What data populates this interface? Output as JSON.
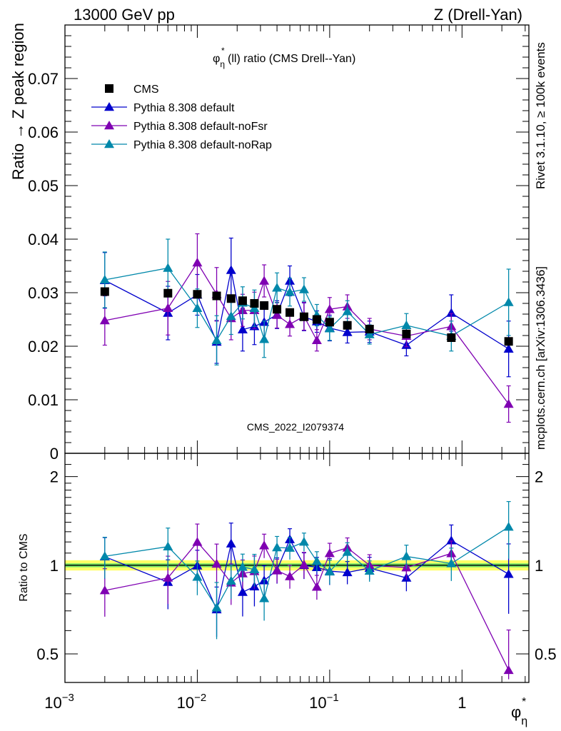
{
  "header": {
    "left": "13000 GeV pp",
    "right": "Z (Drell-Yan)",
    "watermark": "CMS_2022_I2079374"
  },
  "side": {
    "rivet": "Rivet 3.1.10, ≥ 100k events",
    "mcplots": "mcplots.cern.ch [arXiv:1306.3436]"
  },
  "colors": {
    "CMS": "#000000",
    "default": "#0000cc",
    "noFsr": "#7f00b2",
    "noRap": "#0088aa",
    "band_inner": "#00cc66",
    "band_outer": "#ffff66"
  },
  "chart_data": {
    "type": "scatter",
    "title": "φ*η(ll) ratio (CMS Drell--Yan)",
    "title_parts": {
      "sym": "φ",
      "sup": "*",
      "sub": "η",
      "rest": "(ll) ratio (CMS Drell--Yan)"
    },
    "ylabel": "Ratio → Z peak region",
    "ratio_ylabel": "Ratio to CMS",
    "xlabel_parts": {
      "sym": "φ",
      "sup": "*",
      "sub": "η"
    },
    "xscale": "log",
    "xlim": [
      0.001,
      3.2
    ],
    "ylim": [
      0,
      0.08
    ],
    "ratio_ylim": [
      0.4,
      2.4
    ],
    "ratio_scale": "log",
    "legend_position": "top-left",
    "x_tick_labels": [
      {
        "base": "10",
        "exp": "−3"
      },
      {
        "base": "10",
        "exp": "−2"
      },
      {
        "base": "10",
        "exp": "−1"
      },
      {
        "base": "1",
        "exp": ""
      }
    ],
    "y_tick_labels": [
      "0",
      "0.01",
      "0.02",
      "0.03",
      "0.04",
      "0.05",
      "0.06",
      "0.07"
    ],
    "ratio_tick_labels": [
      "0.5",
      "1",
      "2"
    ],
    "x": [
      0.002,
      0.006,
      0.01,
      0.014,
      0.018,
      0.022,
      0.027,
      0.032,
      0.04,
      0.05,
      0.064,
      0.08,
      0.1,
      0.136,
      0.2,
      0.38,
      0.83,
      2.25
    ],
    "series": [
      {
        "name": "CMS",
        "key": "CMS",
        "marker": "square",
        "values": [
          0.0302,
          0.0299,
          0.0297,
          0.0294,
          0.0289,
          0.0285,
          0.028,
          0.0276,
          0.0269,
          0.0263,
          0.0255,
          0.025,
          0.0245,
          0.0239,
          0.0232,
          0.0223,
          0.0216,
          0.0209
        ],
        "errors": [
          0.0004,
          0.0004,
          0.0004,
          0.0004,
          0.0004,
          0.0004,
          0.0004,
          0.0004,
          0.0004,
          0.0004,
          0.0004,
          0.0004,
          0.0004,
          0.0004,
          0.0004,
          0.0004,
          0.0004,
          0.0004
        ]
      },
      {
        "name": "Pythia 8.308 default",
        "key": "default",
        "marker": "triangle",
        "values": [
          0.0323,
          0.0262,
          0.0296,
          0.0208,
          0.0342,
          0.0231,
          0.0237,
          0.0245,
          0.0259,
          0.0322,
          0.0255,
          0.0246,
          0.0234,
          0.0226,
          0.0227,
          0.0202,
          0.0262,
          0.0195
        ],
        "errors": [
          0.0052,
          0.005,
          0.0038,
          0.004,
          0.006,
          0.004,
          0.0034,
          0.003,
          0.0026,
          0.0028,
          0.0026,
          0.002,
          0.0024,
          0.002,
          0.002,
          0.002,
          0.0034,
          0.0052
        ]
      },
      {
        "name": "Pythia 8.308 default-noFsr",
        "key": "noFsr",
        "marker": "triangle",
        "values": [
          0.0248,
          0.0271,
          0.0356,
          0.0297,
          0.0252,
          0.0267,
          0.0267,
          0.0322,
          0.0258,
          0.0241,
          0.0256,
          0.0211,
          0.0269,
          0.0274,
          0.0232,
          0.0219,
          0.0237,
          0.0092
        ],
        "errors": [
          0.0046,
          0.005,
          0.0054,
          0.005,
          0.004,
          0.003,
          0.0034,
          0.003,
          0.0024,
          0.0022,
          0.0026,
          0.002,
          0.0022,
          0.0022,
          0.002,
          0.002,
          0.0024,
          0.0034
        ]
      },
      {
        "name": "Pythia 8.308 default-noRap",
        "key": "noRap",
        "marker": "triangle",
        "values": [
          0.0324,
          0.0346,
          0.0271,
          0.0211,
          0.0256,
          0.0281,
          0.0271,
          0.0213,
          0.0309,
          0.0301,
          0.0306,
          0.0258,
          0.0233,
          0.0265,
          0.0222,
          0.0239,
          0.0219,
          0.0282
        ],
        "errors": [
          0.0052,
          0.0054,
          0.0036,
          0.0046,
          0.0034,
          0.003,
          0.0034,
          0.0034,
          0.0028,
          0.0026,
          0.0022,
          0.002,
          0.0022,
          0.002,
          0.0018,
          0.0022,
          0.0028,
          0.0062
        ]
      }
    ]
  }
}
